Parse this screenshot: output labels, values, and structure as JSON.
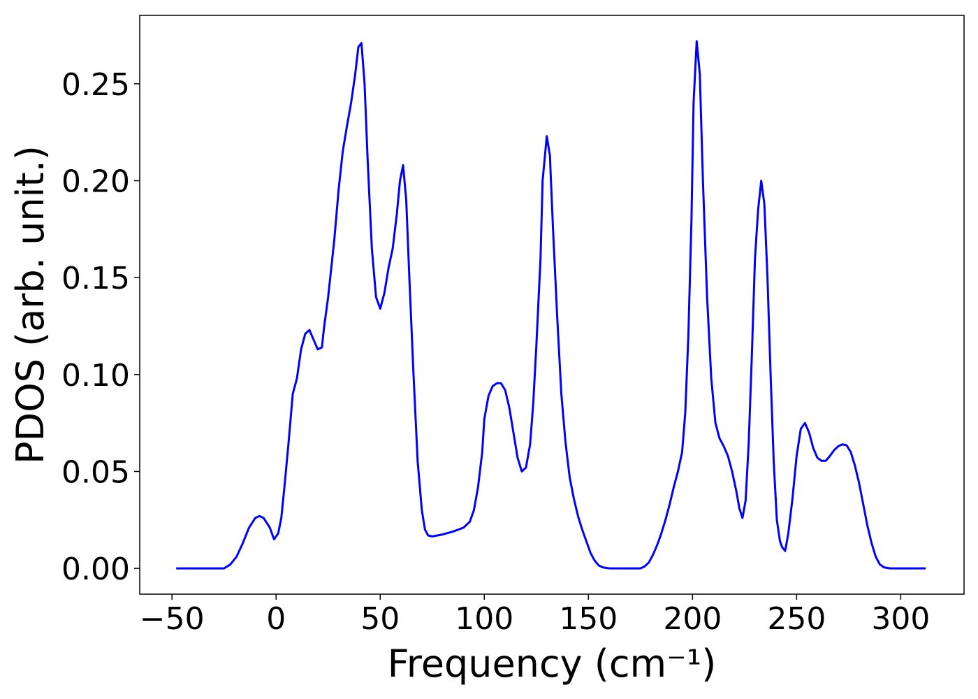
{
  "chart_data": {
    "type": "line",
    "x_label": "Frequency (cm⁻¹)",
    "y_label": "PDOS (arb. unit.)",
    "xlim": [
      -65.5,
      330.4
    ],
    "ylim": [
      -0.0133,
      0.2853
    ],
    "xticks": [
      {
        "value": -50,
        "label": "−50"
      },
      0,
      50,
      100,
      150,
      200,
      250,
      300
    ],
    "yticks": [
      {
        "value": 0,
        "label": "0.00"
      },
      {
        "value": 0.05,
        "label": "0.05"
      },
      {
        "value": 0.1,
        "label": "0.10"
      },
      {
        "value": 0.15,
        "label": "0.15"
      },
      {
        "value": 0.2,
        "label": "0.20"
      },
      {
        "value": 0.25,
        "label": "0.25"
      }
    ],
    "grid": false,
    "series": [
      {
        "color": "#0000ff",
        "x": [
          -48,
          -25,
          -22,
          -19,
          -16,
          -13,
          -10,
          -8,
          -6,
          -3,
          -1,
          1,
          2.5,
          4,
          6,
          8,
          10,
          12,
          14,
          16,
          18,
          20,
          22,
          23,
          25,
          28,
          30,
          32,
          34,
          36,
          38,
          39.5,
          41,
          42.5,
          44,
          46,
          48,
          50,
          52,
          54,
          56,
          58,
          59.5,
          61,
          62.5,
          64,
          66,
          68,
          70,
          71.5,
          73,
          75,
          80,
          85,
          90,
          93,
          95,
          97,
          99,
          100,
          102,
          104,
          106,
          108,
          110,
          112,
          114,
          116,
          118,
          120,
          122,
          123.5,
          125,
          127,
          128,
          130,
          131.5,
          133,
          135,
          137,
          139,
          141,
          143,
          145,
          147,
          149,
          151,
          153,
          155,
          157,
          160,
          175,
          177,
          179,
          181,
          183,
          185,
          187,
          189,
          191,
          193,
          195,
          196.5,
          198,
          199.5,
          200.5,
          202,
          203.5,
          205,
          207,
          209,
          211,
          213,
          215,
          217,
          219,
          221,
          222.5,
          224,
          225.5,
          227,
          228.5,
          230,
          231.5,
          233,
          234.5,
          236,
          237.5,
          239,
          240.5,
          242,
          243,
          244.5,
          246,
          248,
          250,
          252,
          254,
          256,
          258,
          260,
          262,
          264,
          266,
          268,
          270,
          272,
          274,
          276,
          278,
          280,
          282,
          284,
          286,
          288,
          290,
          292,
          295,
          312
        ],
        "values": [
          0,
          0,
          0.002,
          0.006,
          0.013,
          0.021,
          0.026,
          0.027,
          0.026,
          0.021,
          0.015,
          0.018,
          0.026,
          0.042,
          0.065,
          0.09,
          0.098,
          0.113,
          0.121,
          0.123,
          0.118,
          0.113,
          0.114,
          0.124,
          0.14,
          0.17,
          0.195,
          0.215,
          0.228,
          0.24,
          0.255,
          0.269,
          0.271,
          0.25,
          0.21,
          0.165,
          0.14,
          0.134,
          0.142,
          0.155,
          0.165,
          0.183,
          0.2,
          0.208,
          0.19,
          0.15,
          0.1,
          0.055,
          0.03,
          0.02,
          0.017,
          0.0165,
          0.0175,
          0.019,
          0.021,
          0.024,
          0.03,
          0.042,
          0.06,
          0.077,
          0.089,
          0.094,
          0.0955,
          0.0955,
          0.092,
          0.083,
          0.07,
          0.057,
          0.05,
          0.052,
          0.064,
          0.085,
          0.115,
          0.16,
          0.2,
          0.223,
          0.213,
          0.175,
          0.13,
          0.09,
          0.065,
          0.047,
          0.036,
          0.027,
          0.02,
          0.014,
          0.008,
          0.004,
          0.0015,
          0.0005,
          0,
          0,
          0.001,
          0.003,
          0.007,
          0.012,
          0.018,
          0.025,
          0.033,
          0.042,
          0.05,
          0.06,
          0.08,
          0.12,
          0.18,
          0.24,
          0.272,
          0.255,
          0.2,
          0.14,
          0.098,
          0.075,
          0.067,
          0.063,
          0.058,
          0.05,
          0.04,
          0.031,
          0.026,
          0.035,
          0.065,
          0.11,
          0.16,
          0.185,
          0.2,
          0.188,
          0.15,
          0.1,
          0.055,
          0.025,
          0.014,
          0.011,
          0.009,
          0.018,
          0.036,
          0.058,
          0.072,
          0.075,
          0.07,
          0.062,
          0.057,
          0.0555,
          0.0555,
          0.058,
          0.061,
          0.063,
          0.064,
          0.0635,
          0.06,
          0.053,
          0.044,
          0.033,
          0.022,
          0.013,
          0.006,
          0.002,
          0.0005,
          0,
          0
        ]
      }
    ]
  }
}
